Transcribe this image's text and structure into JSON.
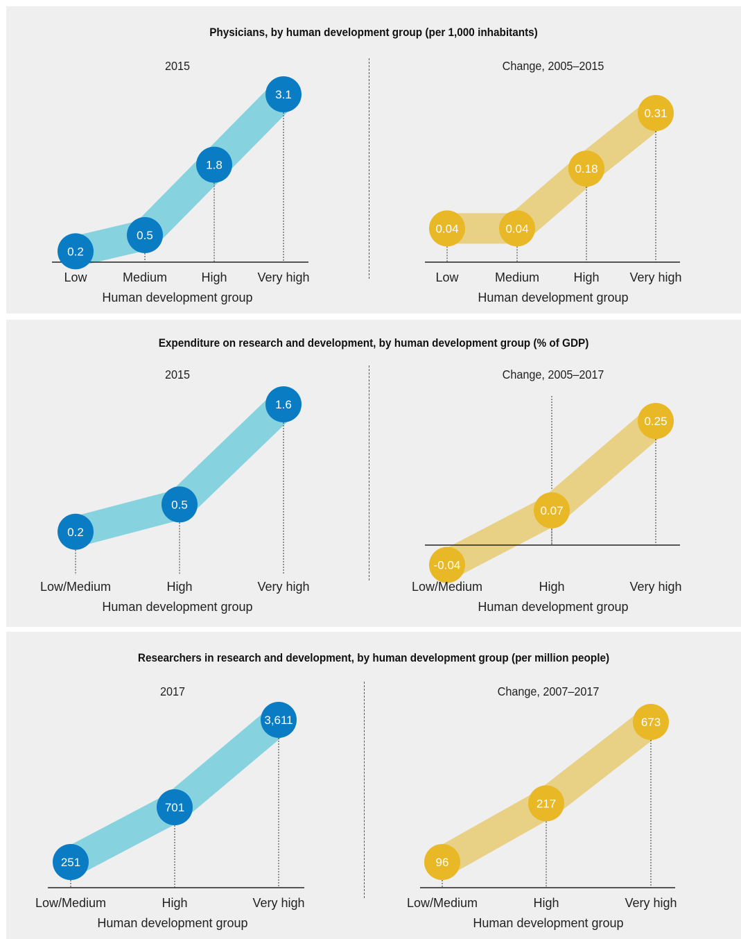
{
  "colors": {
    "blue_marker": "#0a7cc4",
    "blue_band": "#86d3df",
    "yellow_marker": "#e9b827",
    "yellow_band": "#e8d084",
    "panel_bg": "#efefef",
    "text": "#222222"
  },
  "panels": [
    {
      "title": "Physicians, by human development group (per 1,000 inhabitants)",
      "charts": [
        {
          "subtitle": "2015",
          "xlabel": "Human development group",
          "categories": [
            "Low",
            "Medium",
            "High",
            "Very high"
          ],
          "values": [
            0.2,
            0.5,
            1.8,
            3.1
          ],
          "labels": [
            "0.2",
            "0.5",
            "1.8",
            "3.1"
          ],
          "color": "blue"
        },
        {
          "subtitle": "Change, 2005–2015",
          "xlabel": "Human development group",
          "categories": [
            "Low",
            "Medium",
            "High",
            "Very high"
          ],
          "values": [
            0.04,
            0.04,
            0.18,
            0.31
          ],
          "labels": [
            "0.04",
            "0.04",
            "0.18",
            "0.31"
          ],
          "color": "yellow"
        }
      ]
    },
    {
      "title": "Expenditure on research and development, by human development group (% of GDP)",
      "charts": [
        {
          "subtitle": "2015",
          "xlabel": "Human development group",
          "categories": [
            "Low/Medium",
            "High",
            "Very high"
          ],
          "values": [
            0.2,
            0.5,
            1.6
          ],
          "labels": [
            "0.2",
            "0.5",
            "1.6"
          ],
          "color": "blue"
        },
        {
          "subtitle": "Change, 2005–2017",
          "xlabel": "Human development group",
          "categories": [
            "Low/Medium",
            "High",
            "Very high"
          ],
          "values": [
            -0.04,
            0.07,
            0.25
          ],
          "labels": [
            "-0.04",
            "0.07",
            "0.25"
          ],
          "color": "yellow"
        }
      ]
    },
    {
      "title": "Researchers in research and development, by human development group (per million people)",
      "charts": [
        {
          "subtitle": "2017",
          "xlabel": "Human development group",
          "categories": [
            "Low/Medium",
            "High",
            "Very high"
          ],
          "values": [
            251,
            701,
            3611
          ],
          "labels": [
            "251",
            "701",
            "3,611"
          ],
          "color": "blue"
        },
        {
          "subtitle": "Change, 2007–2017",
          "xlabel": "Human development group",
          "categories": [
            "Low/Medium",
            "High",
            "Very high"
          ],
          "values": [
            96,
            217,
            673
          ],
          "labels": [
            "96",
            "217",
            "673"
          ],
          "color": "yellow"
        }
      ]
    }
  ],
  "chart_data": [
    {
      "type": "line",
      "title": "Physicians, by human development group (per 1,000 inhabitants)",
      "subtitle": "2015",
      "categories": [
        "Low",
        "Medium",
        "High",
        "Very high"
      ],
      "values": [
        0.2,
        0.5,
        1.8,
        3.1
      ],
      "xlabel": "Human development group"
    },
    {
      "type": "line",
      "title": "Physicians, by human development group (per 1,000 inhabitants)",
      "subtitle": "Change, 2005–2015",
      "categories": [
        "Low",
        "Medium",
        "High",
        "Very high"
      ],
      "values": [
        0.04,
        0.04,
        0.18,
        0.31
      ],
      "xlabel": "Human development group"
    },
    {
      "type": "line",
      "title": "Expenditure on research and development, by human development group (% of GDP)",
      "subtitle": "2015",
      "categories": [
        "Low/Medium",
        "High",
        "Very high"
      ],
      "values": [
        0.2,
        0.5,
        1.6
      ],
      "xlabel": "Human development group"
    },
    {
      "type": "line",
      "title": "Expenditure on research and development, by human development group (% of GDP)",
      "subtitle": "Change, 2005–2017",
      "categories": [
        "Low/Medium",
        "High",
        "Very high"
      ],
      "values": [
        -0.04,
        0.07,
        0.25
      ],
      "xlabel": "Human development group"
    },
    {
      "type": "line",
      "title": "Researchers in research and development, by human development group (per million people)",
      "subtitle": "2017",
      "categories": [
        "Low/Medium",
        "High",
        "Very high"
      ],
      "values": [
        251,
        701,
        3611
      ],
      "xlabel": "Human development group"
    },
    {
      "type": "line",
      "title": "Researchers in research and development, by human development group (per million people)",
      "subtitle": "Change, 2007–2017",
      "categories": [
        "Low/Medium",
        "High",
        "Very high"
      ],
      "values": [
        96,
        217,
        673
      ],
      "xlabel": "Human development group"
    }
  ]
}
